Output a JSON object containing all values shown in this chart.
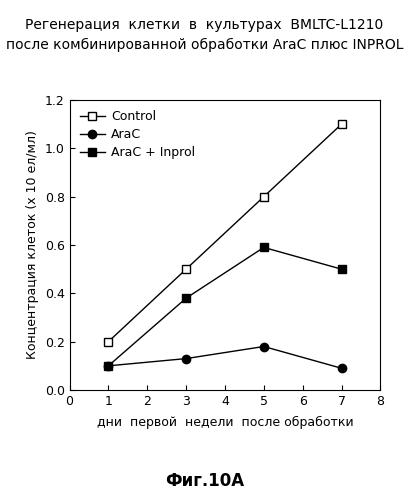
{
  "title_line1": "Регенерация  клетки  в  культурах  BMLTC-L1210",
  "title_line2": "после комбинированной обработки AraC плюс INPROL",
  "xlabel": "дни  первой  недели  после обработки",
  "ylabel": "Концентрация клеток (х 10 ел/мл)",
  "caption": "Фиг.10А",
  "xlim": [
    0,
    8
  ],
  "ylim": [
    0,
    1.2
  ],
  "xticks": [
    0,
    1,
    2,
    3,
    4,
    5,
    6,
    7,
    8
  ],
  "yticks": [
    0.0,
    0.2,
    0.4,
    0.6,
    0.8,
    1.0,
    1.2
  ],
  "series": [
    {
      "label": "Control",
      "x": [
        1,
        3,
        5,
        7
      ],
      "y": [
        0.2,
        0.5,
        0.8,
        1.1
      ],
      "color": "black",
      "marker": "s",
      "marker_fill": "white",
      "linestyle": "-"
    },
    {
      "label": "AraC",
      "x": [
        1,
        3,
        5,
        7
      ],
      "y": [
        0.1,
        0.13,
        0.18,
        0.09
      ],
      "color": "black",
      "marker": "o",
      "marker_fill": "black",
      "linestyle": "-"
    },
    {
      "label": "AraC + Inprol",
      "x": [
        1,
        3,
        5,
        7
      ],
      "y": [
        0.1,
        0.38,
        0.59,
        0.5
      ],
      "color": "black",
      "marker": "s",
      "marker_fill": "black",
      "linestyle": "-"
    }
  ],
  "background_color": "#ffffff",
  "title_fontsize": 10,
  "label_fontsize": 9,
  "tick_fontsize": 9,
  "legend_fontsize": 9,
  "caption_fontsize": 12
}
